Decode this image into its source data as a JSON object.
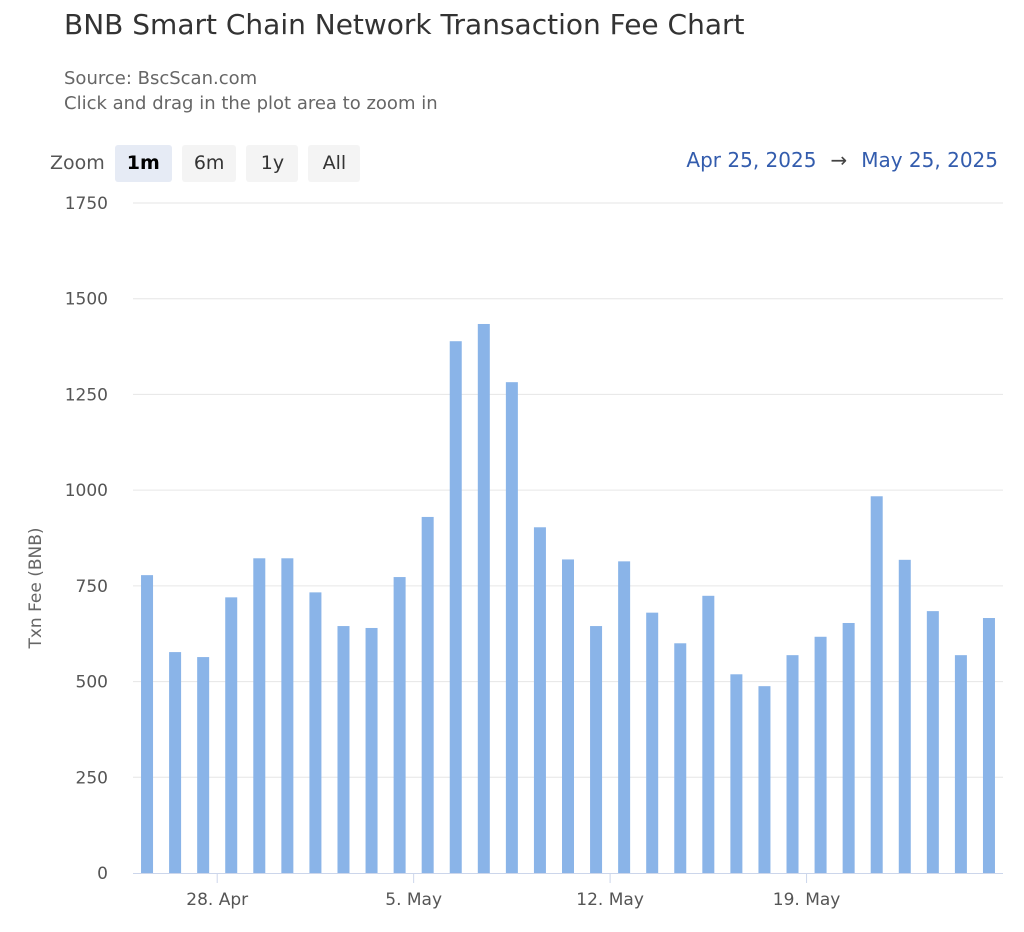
{
  "title": "BNB Smart Chain Network Transaction Fee Chart",
  "subtitle": {
    "source": "Source: BscScan.com",
    "hint": "Click and drag in the plot area to zoom in"
  },
  "zoom": {
    "label": "Zoom",
    "buttons": [
      "1m",
      "6m",
      "1y",
      "All"
    ],
    "active": "1m"
  },
  "range": {
    "from": "Apr 25, 2025",
    "arrow": "→",
    "to": "May 25, 2025"
  },
  "colors": {
    "bar": "#8ab4e8",
    "grid": "#e6e6e6",
    "axis": "#ccd6eb",
    "range_text": "#335cad"
  },
  "chart_data": {
    "type": "bar",
    "ylabel": "Txn Fee (BNB)",
    "xlabel": "",
    "ylim": [
      0,
      1750
    ],
    "yticks": [
      0,
      250,
      500,
      750,
      1000,
      1250,
      1500,
      1750
    ],
    "grid": true,
    "xtick_labels": [
      {
        "label": "28. Apr",
        "date": "2025-04-28"
      },
      {
        "label": "5. May",
        "date": "2025-05-05"
      },
      {
        "label": "12. May",
        "date": "2025-05-12"
      },
      {
        "label": "19. May",
        "date": "2025-05-19"
      }
    ],
    "x": [
      "2025-04-25",
      "2025-04-26",
      "2025-04-27",
      "2025-04-28",
      "2025-04-29",
      "2025-04-30",
      "2025-05-01",
      "2025-05-02",
      "2025-05-03",
      "2025-05-04",
      "2025-05-05",
      "2025-05-06",
      "2025-05-07",
      "2025-05-08",
      "2025-05-09",
      "2025-05-10",
      "2025-05-11",
      "2025-05-12",
      "2025-05-13",
      "2025-05-14",
      "2025-05-15",
      "2025-05-16",
      "2025-05-17",
      "2025-05-18",
      "2025-05-19",
      "2025-05-20",
      "2025-05-21",
      "2025-05-22",
      "2025-05-23",
      "2025-05-24",
      "2025-05-25"
    ],
    "values": [
      778,
      577,
      564,
      720,
      822,
      822,
      733,
      645,
      640,
      773,
      930,
      1389,
      1434,
      1282,
      903,
      819,
      645,
      814,
      680,
      600,
      724,
      519,
      488,
      569,
      617,
      653,
      984,
      818,
      684,
      569,
      666
    ]
  }
}
